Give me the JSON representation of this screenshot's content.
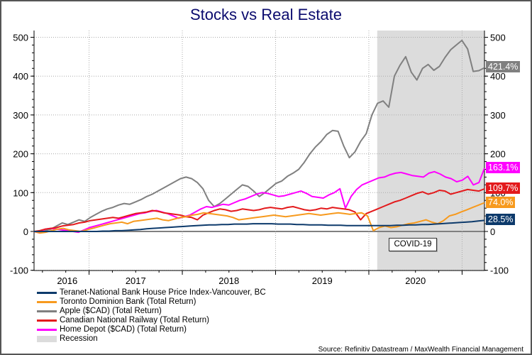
{
  "chart_data": {
    "type": "line",
    "title": "Stocks vs Real Estate",
    "xlabel": "",
    "ylabel": "",
    "ylim": [
      -100,
      520
    ],
    "yticks": [
      -100,
      0,
      100,
      200,
      300,
      400,
      500
    ],
    "ytick_labels": [
      "-100",
      "0",
      "100",
      "200",
      "300",
      "400",
      "500"
    ],
    "xticks_labels": [
      "2016",
      "2017",
      "2018",
      "2019",
      "2020"
    ],
    "x_start": 2016.41,
    "x_end": 2021.24,
    "grid": true,
    "legend_placement": "bottom-left",
    "recession": {
      "name": "Recession",
      "start": 2020.09,
      "end": 2021.24,
      "annotation": "COVID-19",
      "color": "#dcdcdc"
    },
    "series": [
      {
        "name": "Teranet-National Bank House Price Index-Vancouver, BC",
        "color": "#0d3a6b",
        "end_label": "28.5%",
        "values": [
          0,
          0,
          0,
          0,
          0,
          0,
          0,
          0,
          0,
          0,
          0,
          1,
          1,
          2,
          2,
          3,
          4,
          5,
          7,
          8,
          9,
          10,
          11,
          12,
          13,
          14,
          15,
          16,
          17,
          17,
          18,
          18,
          19,
          19,
          19,
          20,
          20,
          20,
          20,
          19,
          19,
          19,
          18,
          18,
          17,
          17,
          17,
          16,
          16,
          16,
          15,
          15,
          15,
          15,
          15,
          15,
          15,
          15,
          16,
          16,
          17,
          17,
          18,
          18,
          19,
          20,
          21,
          22,
          23,
          24,
          25,
          27,
          28.5
        ]
      },
      {
        "name": "Toronto Dominion Bank (Total Return)",
        "color": "#f79a1e",
        "end_label": "74.0%",
        "values": [
          0,
          -4,
          -2,
          2,
          6,
          8,
          4,
          2,
          0,
          4,
          8,
          12,
          16,
          20,
          22,
          24,
          20,
          26,
          28,
          30,
          32,
          34,
          30,
          28,
          32,
          36,
          38,
          42,
          44,
          48,
          46,
          44,
          42,
          40,
          36,
          30,
          32,
          34,
          36,
          38,
          40,
          42,
          40,
          38,
          40,
          42,
          44,
          46,
          44,
          42,
          44,
          46,
          48,
          46,
          44,
          46,
          48,
          40,
          2,
          10,
          14,
          10,
          12,
          16,
          20,
          22,
          26,
          30,
          24,
          20,
          28,
          40,
          44,
          50,
          56,
          62,
          68,
          74
        ]
      },
      {
        "name": "Apple ($CAD) (Total Return)",
        "color": "#808080",
        "end_label": "421.4%",
        "values": [
          0,
          -3,
          2,
          6,
          14,
          22,
          18,
          24,
          30,
          26,
          36,
          44,
          52,
          58,
          62,
          68,
          72,
          70,
          76,
          82,
          90,
          96,
          104,
          112,
          120,
          128,
          136,
          140,
          136,
          126,
          110,
          80,
          64,
          72,
          84,
          96,
          108,
          120,
          116,
          104,
          90,
          100,
          112,
          124,
          130,
          142,
          150,
          160,
          178,
          200,
          218,
          232,
          250,
          260,
          258,
          220,
          190,
          205,
          232,
          252,
          300,
          330,
          336,
          320,
          400,
          428,
          450,
          410,
          390,
          420,
          430,
          415,
          425,
          448,
          468,
          480,
          492,
          470,
          412,
          414,
          421.4
        ]
      },
      {
        "name": "Canadian National Railway (Total Return)",
        "color": "#e31a1c",
        "end_label": "109.7%",
        "values": [
          0,
          2,
          6,
          8,
          10,
          14,
          16,
          18,
          22,
          24,
          28,
          30,
          32,
          34,
          36,
          34,
          38,
          42,
          46,
          48,
          50,
          54,
          52,
          48,
          46,
          44,
          42,
          38,
          36,
          30,
          42,
          48,
          54,
          58,
          56,
          52,
          54,
          58,
          56,
          54,
          56,
          60,
          62,
          60,
          58,
          62,
          64,
          60,
          56,
          54,
          56,
          60,
          58,
          62,
          60,
          58,
          56,
          50,
          30,
          46,
          52,
          58,
          64,
          70,
          76,
          80,
          86,
          92,
          98,
          102,
          96,
          100,
          106,
          104,
          96,
          100,
          104,
          108,
          106,
          104,
          109.7
        ]
      },
      {
        "name": "Home Depot ($CAD) (Total Return)",
        "color": "#ff00ff",
        "end_label": "163.1%",
        "values": [
          0,
          -4,
          6,
          8,
          6,
          4,
          2,
          0,
          -2,
          4,
          10,
          14,
          18,
          22,
          26,
          30,
          34,
          38,
          42,
          46,
          48,
          52,
          54,
          50,
          46,
          40,
          34,
          38,
          42,
          50,
          58,
          64,
          62,
          66,
          70,
          68,
          74,
          80,
          84,
          90,
          96,
          100,
          98,
          94,
          90,
          92,
          96,
          100,
          104,
          98,
          90,
          88,
          86,
          94,
          100,
          110,
          60,
          90,
          108,
          120,
          126,
          132,
          138,
          140,
          146,
          150,
          152,
          148,
          144,
          142,
          140,
          150,
          154,
          148,
          140,
          136,
          128,
          132,
          142,
          120,
          126,
          163.1
        ]
      }
    ],
    "source": "Source: Refinitiv Datastream / MaxWealth Financial Management"
  },
  "legend": {
    "items": [
      {
        "label": "Teranet-National Bank House Price Index-Vancouver, BC",
        "color": "#0d3a6b"
      },
      {
        "label": "Toronto Dominion Bank (Total Return)",
        "color": "#f79a1e"
      },
      {
        "label": "Apple ($CAD) (Total Return)",
        "color": "#808080"
      },
      {
        "label": "Canadian National Railway (Total Return)",
        "color": "#e31a1c"
      },
      {
        "label": "Home Depot ($CAD) (Total Return)",
        "color": "#ff00ff"
      },
      {
        "label": "Recession",
        "color": "#dcdcdc"
      }
    ]
  }
}
